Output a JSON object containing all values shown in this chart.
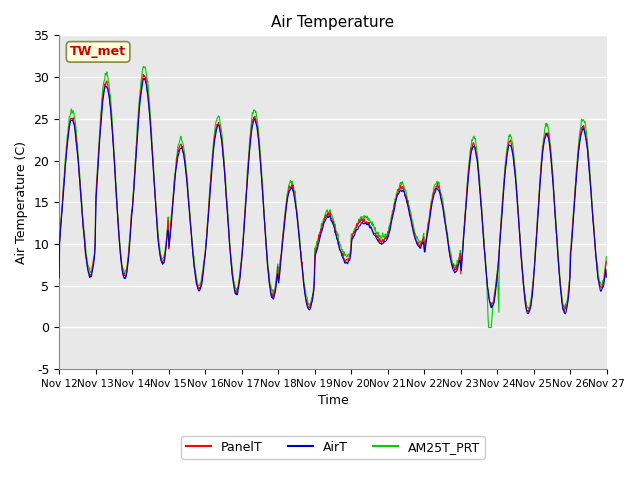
{
  "title": "Air Temperature",
  "ylabel": "Air Temperature (C)",
  "xlabel": "Time",
  "ylim": [
    -5,
    35
  ],
  "y_ticks": [
    -5,
    0,
    5,
    10,
    15,
    20,
    25,
    30,
    35
  ],
  "x_tick_labels": [
    "Nov 12",
    "Nov 13",
    "Nov 14",
    "Nov 15",
    "Nov 16",
    "Nov 17",
    "Nov 18",
    "Nov 19",
    "Nov 20",
    "Nov 21",
    "Nov 22",
    "Nov 23",
    "Nov 24",
    "Nov 25",
    "Nov 26",
    "Nov 27"
  ],
  "background_color": "#e8e8e8",
  "grid_color": "#ffffff",
  "panel_color": "#ff0000",
  "air_color": "#0000cc",
  "am25_color": "#00cc00",
  "station_label": "TW_met",
  "station_label_color": "#cc0000",
  "station_label_bg": "#ffffdd",
  "station_label_border": "#888844"
}
